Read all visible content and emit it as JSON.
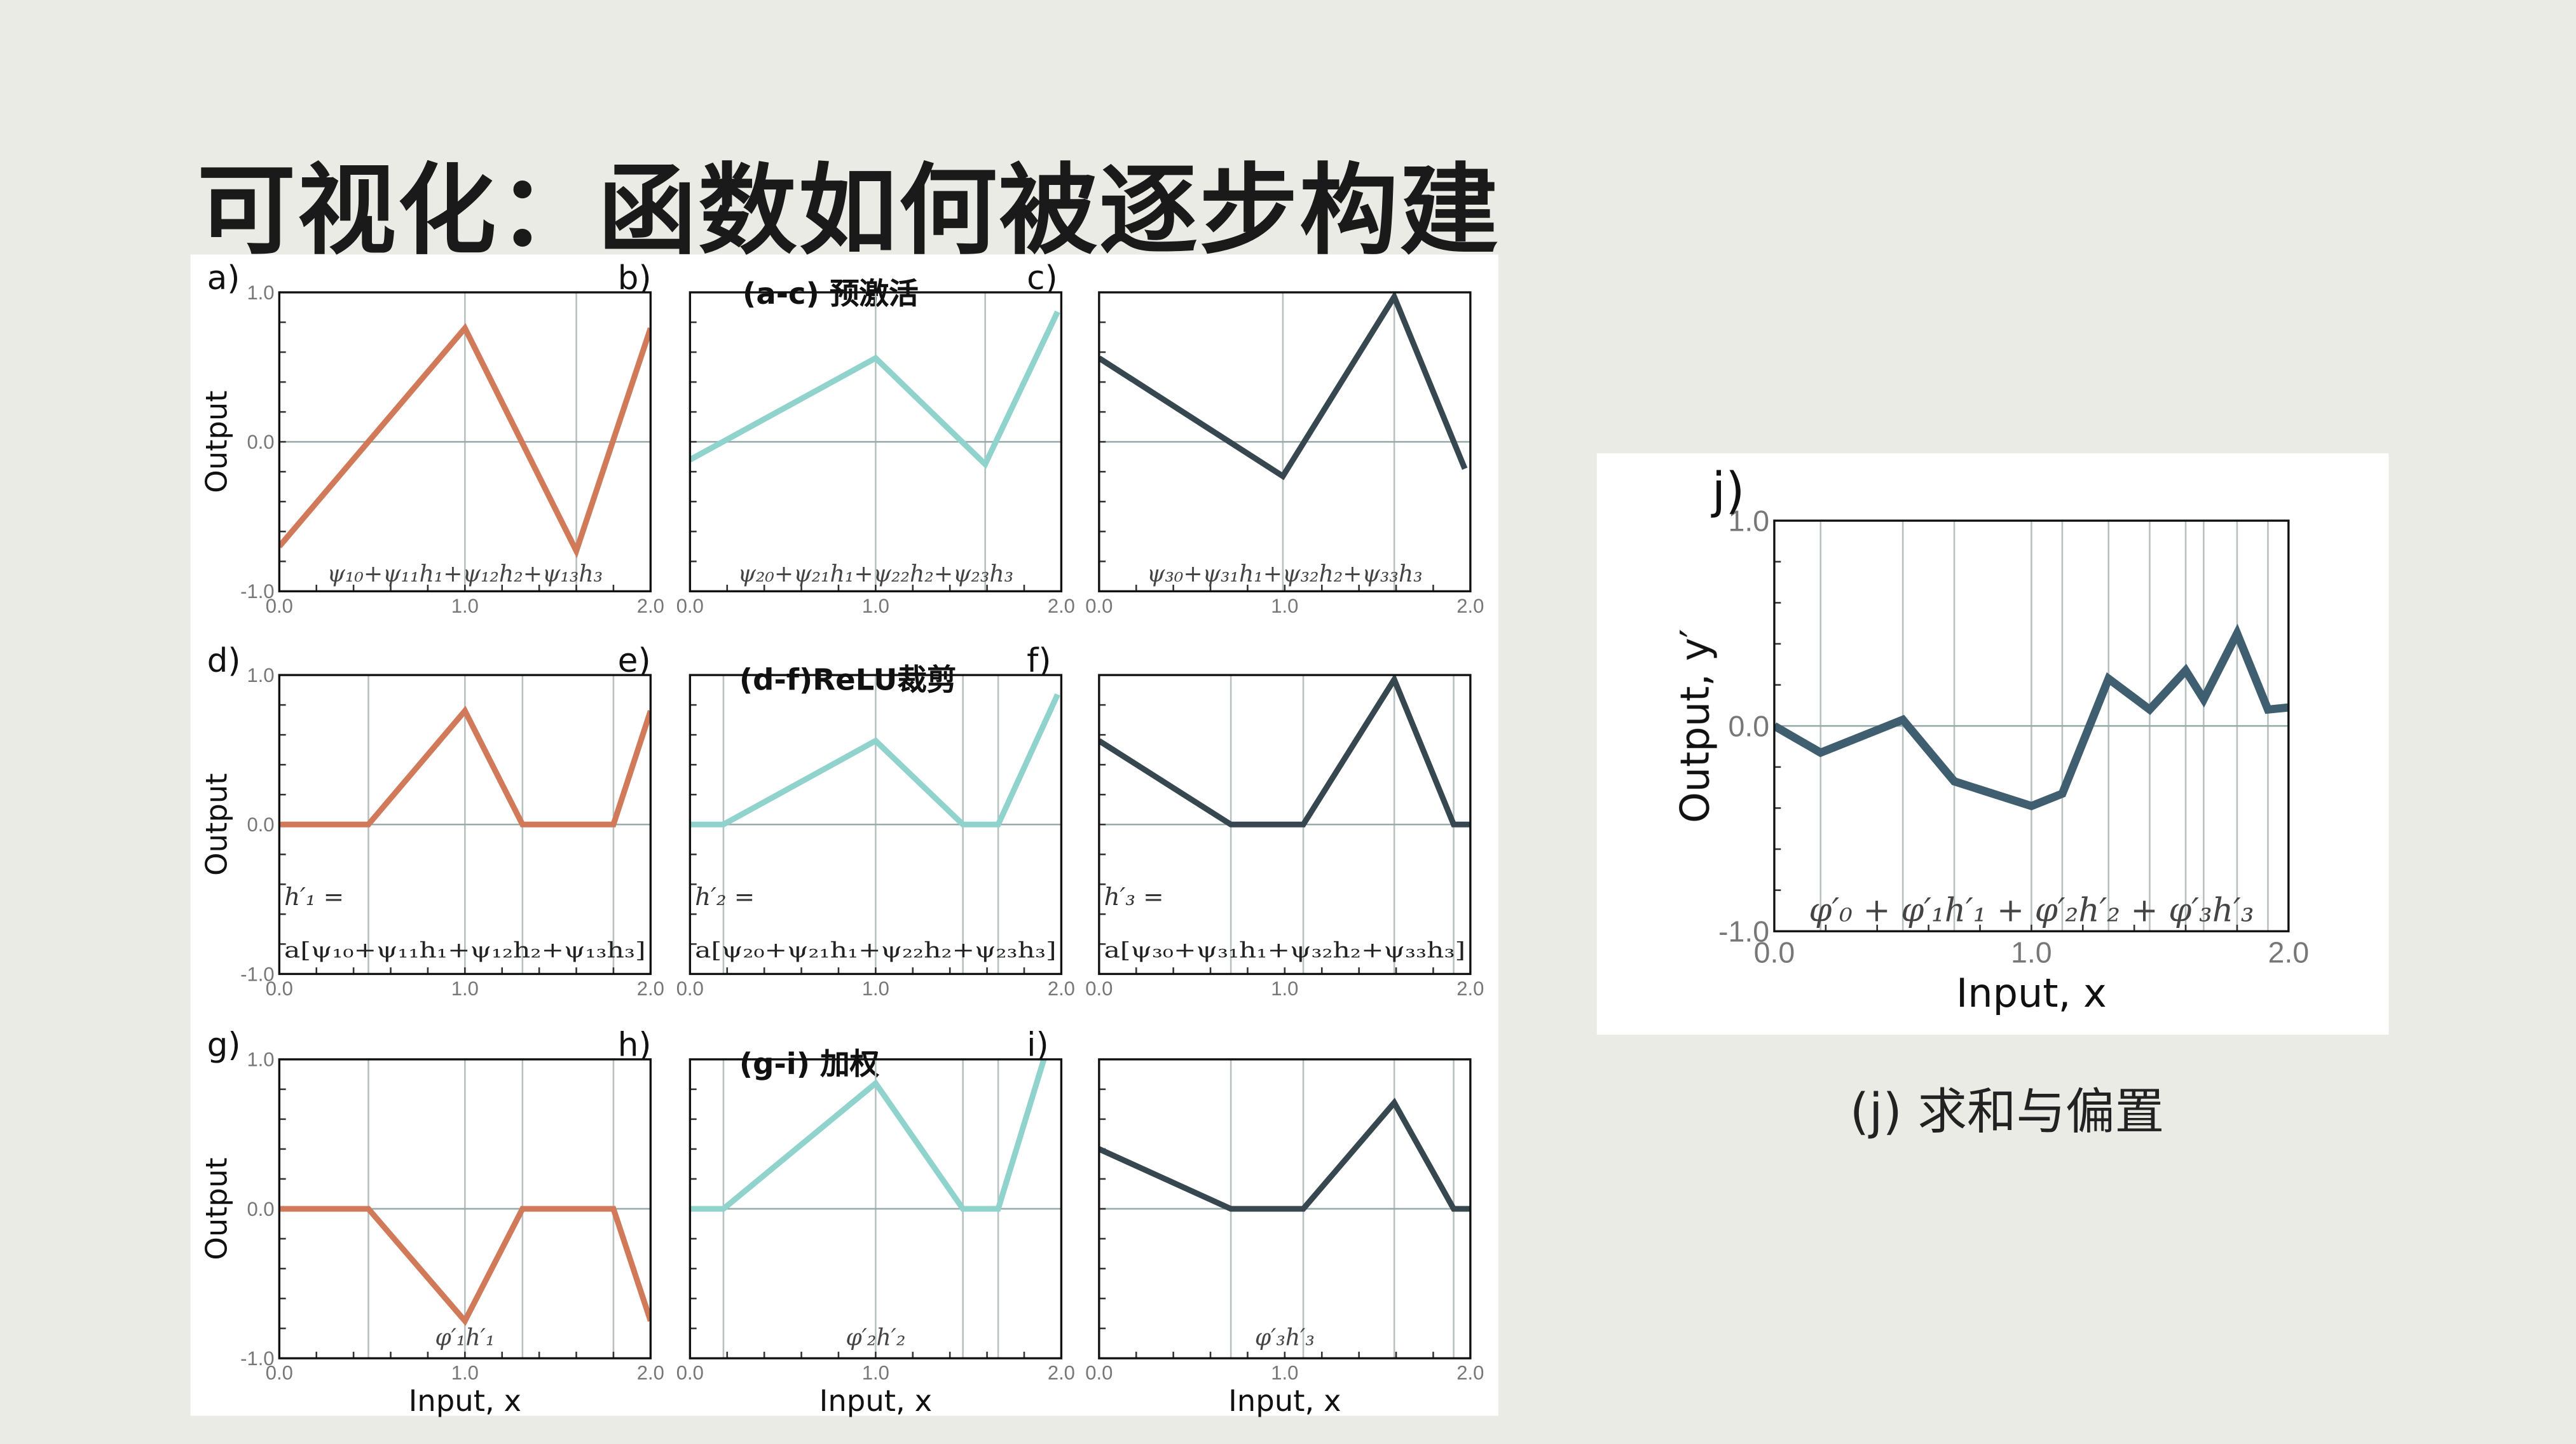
{
  "title": "可视化：函数如何被逐步构建",
  "row_labels": [
    "(a-c) 预激活",
    "(d-f)ReLU裁剪",
    "(g-i) 加权"
  ],
  "caption": "(j) 求和与偏置",
  "colors": {
    "h1": "#d07a5a",
    "h2": "#8fd3cc",
    "h3": "#37474f",
    "sum": "#3f5f70"
  },
  "chart_data": [
    {
      "id": "a",
      "type": "line",
      "panel_label": "a)",
      "ylabel": "Output",
      "xlabel": "",
      "series_color": "h1",
      "annotation": [
        "ψ₁₀+ψ₁₁h₁+ψ₁₂h₂+ψ₁₃h₃"
      ],
      "x": [
        0,
        1.0,
        1.6,
        2.0
      ],
      "y": [
        -0.7,
        0.76,
        -0.73,
        0.76
      ],
      "grid_x": [
        1.0,
        1.6
      ],
      "xlim": [
        0,
        2
      ],
      "ylim": [
        -1,
        1
      ],
      "xticks": [
        "0.0",
        "1.0",
        "2.0"
      ],
      "yticks": [
        "-1.0",
        "0.0",
        "1.0"
      ]
    },
    {
      "id": "b",
      "type": "line",
      "panel_label": "b)",
      "ylabel": "",
      "xlabel": "",
      "series_color": "h2",
      "annotation": [
        "ψ₂₀+ψ₂₁h₁+ψ₂₂h₂+ψ₂₃h₃"
      ],
      "x": [
        0,
        1.0,
        1.59,
        1.98
      ],
      "y": [
        -0.12,
        0.56,
        -0.15,
        0.87
      ],
      "grid_x": [
        1.0,
        1.59
      ],
      "xlim": [
        0,
        2
      ],
      "ylim": [
        -1,
        1
      ],
      "xticks": [
        "0.0",
        "1.0",
        "2.0"
      ],
      "yticks": []
    },
    {
      "id": "c",
      "type": "line",
      "panel_label": "c)",
      "ylabel": "",
      "xlabel": "",
      "series_color": "h3",
      "annotation": [
        "ψ₃₀+ψ₃₁h₁+ψ₃₂h₂+ψ₃₃h₃"
      ],
      "x": [
        0,
        0.99,
        1.59,
        1.97
      ],
      "y": [
        0.56,
        -0.23,
        0.97,
        -0.18
      ],
      "grid_x": [
        0.99,
        1.59
      ],
      "xlim": [
        0,
        2
      ],
      "ylim": [
        -1,
        1
      ],
      "xticks": [
        "0.0",
        "1.0",
        "2.0"
      ],
      "yticks": []
    },
    {
      "id": "d",
      "type": "line",
      "panel_label": "d)",
      "ylabel": "Output",
      "xlabel": "",
      "series_color": "h1",
      "annotation": [
        "h′₁ =",
        "a[ψ₁₀+ψ₁₁h₁+ψ₁₂h₂+ψ₁₃h₃]"
      ],
      "x": [
        0,
        0.48,
        1.0,
        1.31,
        1.8,
        2.0
      ],
      "y": [
        0,
        0,
        0.76,
        0,
        0,
        0.76
      ],
      "grid_x": [
        0.48,
        1.0,
        1.31,
        1.8
      ],
      "xlim": [
        0,
        2
      ],
      "ylim": [
        -1,
        1
      ],
      "xticks": [
        "0.0",
        "1.0",
        "2.0"
      ],
      "yticks": [
        "-1.0",
        "0.0",
        "1.0"
      ]
    },
    {
      "id": "e",
      "type": "line",
      "panel_label": "e)",
      "ylabel": "",
      "xlabel": "",
      "series_color": "h2",
      "annotation": [
        "h′₂ =",
        "a[ψ₂₀+ψ₂₁h₁+ψ₂₂h₂+ψ₂₃h₃]"
      ],
      "x": [
        0,
        0.18,
        1.0,
        1.47,
        1.66,
        1.98
      ],
      "y": [
        0,
        0,
        0.56,
        0,
        0,
        0.87
      ],
      "grid_x": [
        0.18,
        1.0,
        1.47,
        1.66
      ],
      "xlim": [
        0,
        2
      ],
      "ylim": [
        -1,
        1
      ],
      "xticks": [
        "0.0",
        "1.0",
        "2.0"
      ],
      "yticks": []
    },
    {
      "id": "f",
      "type": "line",
      "panel_label": "f)",
      "ylabel": "",
      "xlabel": "",
      "series_color": "h3",
      "annotation": [
        "h′₃ =",
        "a[ψ₃₀+ψ₃₁h₁+ψ₃₂h₂+ψ₃₃h₃]"
      ],
      "x": [
        0,
        0.71,
        1.1,
        1.59,
        1.91,
        2.0
      ],
      "y": [
        0.56,
        0,
        0,
        0.97,
        0,
        0
      ],
      "grid_x": [
        0.71,
        1.1,
        1.59,
        1.91
      ],
      "xlim": [
        0,
        2
      ],
      "ylim": [
        -1,
        1
      ],
      "xticks": [
        "0.0",
        "1.0",
        "2.0"
      ],
      "yticks": []
    },
    {
      "id": "g",
      "type": "line",
      "panel_label": "g)",
      "ylabel": "Output",
      "xlabel": "Input, x",
      "series_color": "h1",
      "annotation": [
        "φ′₁h′₁"
      ],
      "x": [
        0,
        0.48,
        1.0,
        1.31,
        1.8,
        2.0
      ],
      "y": [
        0,
        0,
        -0.75,
        0,
        0,
        -0.75
      ],
      "grid_x": [
        0.48,
        1.0,
        1.31,
        1.8
      ],
      "xlim": [
        0,
        2
      ],
      "ylim": [
        -1,
        1
      ],
      "xticks": [
        "0.0",
        "1.0",
        "2.0"
      ],
      "yticks": [
        "-1.0",
        "0.0",
        "1.0"
      ]
    },
    {
      "id": "h",
      "type": "line",
      "panel_label": "h)",
      "ylabel": "",
      "xlabel": "Input, x",
      "series_color": "h2",
      "annotation": [
        "φ′₂h′₂"
      ],
      "x": [
        0,
        0.18,
        1.0,
        1.47,
        1.66,
        1.98
      ],
      "y": [
        0,
        0,
        0.84,
        0,
        0,
        1.3
      ],
      "grid_x": [
        0.18,
        1.0,
        1.47,
        1.66
      ],
      "xlim": [
        0,
        2
      ],
      "ylim": [
        -1,
        1
      ],
      "xticks": [
        "0.0",
        "1.0",
        "2.0"
      ],
      "yticks": []
    },
    {
      "id": "i",
      "type": "line",
      "panel_label": "i)",
      "ylabel": "",
      "xlabel": "Input, x",
      "series_color": "h3",
      "annotation": [
        "φ′₃h′₃"
      ],
      "x": [
        0,
        0.71,
        1.1,
        1.59,
        1.91,
        2.0
      ],
      "y": [
        0.4,
        0,
        0,
        0.71,
        0,
        0
      ],
      "grid_x": [
        0.71,
        1.1,
        1.59,
        1.91
      ],
      "xlim": [
        0,
        2
      ],
      "ylim": [
        -1,
        1
      ],
      "xticks": [
        "0.0",
        "1.0",
        "2.0"
      ],
      "yticks": []
    },
    {
      "id": "j",
      "type": "line",
      "panel_label": "j)",
      "ylabel": "Output, y′",
      "xlabel": "Input, x",
      "series_color": "sum",
      "annotation": [
        "φ′₀ + φ′₁h′₁ + φ′₂h′₂ + φ′₃h′₃"
      ],
      "x": [
        0,
        0.18,
        0.5,
        0.7,
        1.0,
        1.12,
        1.3,
        1.46,
        1.6,
        1.67,
        1.8,
        1.92,
        2.0
      ],
      "y": [
        0,
        -0.13,
        0.03,
        -0.27,
        -0.39,
        -0.33,
        0.23,
        0.08,
        0.27,
        0.13,
        0.45,
        0.08,
        0.09
      ],
      "grid_x": [
        0.18,
        0.5,
        0.7,
        1.0,
        1.12,
        1.3,
        1.46,
        1.6,
        1.67,
        1.8,
        1.92
      ],
      "xlim": [
        0,
        2
      ],
      "ylim": [
        -1,
        1
      ],
      "xticks": [
        "0.0",
        "1.0",
        "2.0"
      ],
      "yticks": [
        "-1.0",
        "0.0",
        "1.0"
      ]
    }
  ]
}
